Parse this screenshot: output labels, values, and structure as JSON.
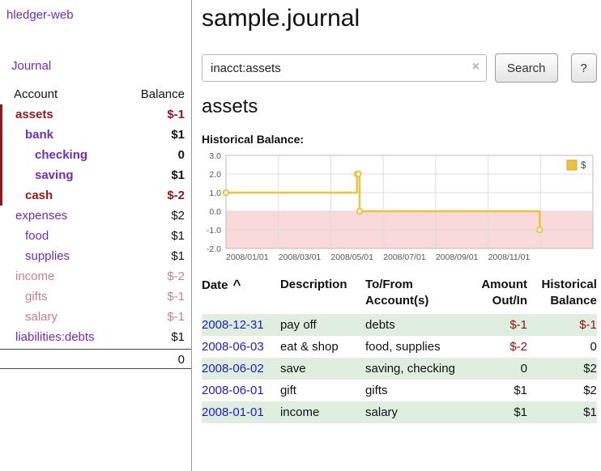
{
  "colors": {
    "link_purple": "#6f2cba",
    "negative_dark_red": "#8f1a1a",
    "negative_muted_pink": "#c2808f",
    "register_negative_red": "#a30d0d",
    "date_link_blue": "#1b1bd1",
    "row_green": "#dfeedf",
    "chart_line": "#edc240",
    "chart_negative_fill": "#f9d9d9"
  },
  "sidebar": {
    "app_title": "hledger-web",
    "journal_link": "Journal",
    "accounts": {
      "header_account": "Account",
      "header_balance": "Balance",
      "rows": [
        {
          "name": "assets",
          "balance": "$-1",
          "indent": 0,
          "bold": true,
          "negative": true,
          "in_query": true
        },
        {
          "name": "bank",
          "balance": "$1",
          "indent": 1,
          "bold": true,
          "negative": false,
          "in_query": true
        },
        {
          "name": "checking",
          "balance": "0",
          "indent": 2,
          "bold": true,
          "negative": false,
          "in_query": true
        },
        {
          "name": "saving",
          "balance": "$1",
          "indent": 2,
          "bold": true,
          "negative": false,
          "in_query": true
        },
        {
          "name": "cash",
          "balance": "$-2",
          "indent": 1,
          "bold": true,
          "negative": true,
          "in_query": true
        },
        {
          "name": "expenses",
          "balance": "$2",
          "indent": 0,
          "bold": false,
          "negative": false,
          "in_query": false
        },
        {
          "name": "food",
          "balance": "$1",
          "indent": 1,
          "bold": false,
          "negative": false,
          "in_query": false
        },
        {
          "name": "supplies",
          "balance": "$1",
          "indent": 1,
          "bold": false,
          "negative": false,
          "in_query": false
        },
        {
          "name": "income",
          "balance": "$-2",
          "indent": 0,
          "bold": false,
          "negative": true,
          "in_query": false
        },
        {
          "name": "gifts",
          "balance": "$-1",
          "indent": 1,
          "bold": false,
          "negative": true,
          "in_query": false
        },
        {
          "name": "salary",
          "balance": "$-1",
          "indent": 1,
          "bold": false,
          "negative": true,
          "in_query": false
        },
        {
          "name": "liabilities:debts",
          "balance": "$1",
          "indent": 0,
          "bold": false,
          "negative": false,
          "in_query": false
        }
      ],
      "total": "0"
    }
  },
  "main": {
    "title": "sample.journal",
    "search": {
      "value": "inacct:assets",
      "clear_icon": "×",
      "search_button": "Search",
      "help_button": "?"
    },
    "account_heading": "assets",
    "chart_heading": "Historical Balance:"
  },
  "chart_data": {
    "type": "line",
    "step": true,
    "title": "Historical Balance",
    "series": [
      {
        "name": "$",
        "points": [
          {
            "date": "2008-01-01",
            "month_x": 0,
            "y": 1.0
          },
          {
            "date": "2008-06-01",
            "month_x": 5.0,
            "y": 2.0
          },
          {
            "date": "2008-06-02",
            "month_x": 5.05,
            "y": 2.0
          },
          {
            "date": "2008-06-03",
            "month_x": 5.1,
            "y": 0.0
          },
          {
            "date": "2008-12-31",
            "month_x": 11.97,
            "y": -1.0
          }
        ]
      }
    ],
    "x_domain_months": [
      0,
      14
    ],
    "x_ticks": [
      {
        "x": 0,
        "label": "2008/01/01"
      },
      {
        "x": 2,
        "label": "2008/03/01"
      },
      {
        "x": 4,
        "label": "2008/05/01"
      },
      {
        "x": 6,
        "label": "2008/07/01"
      },
      {
        "x": 8,
        "label": "2008/09/01"
      },
      {
        "x": 10,
        "label": "2008/11/01"
      },
      {
        "x": 12,
        "label": ""
      }
    ],
    "y_ticks": [
      3.0,
      2.0,
      1.0,
      0.0,
      -1.0,
      -2.0
    ],
    "ylim": [
      -2.0,
      3.0
    ],
    "legend": {
      "label": "$",
      "position": "top-right"
    },
    "negative_region_shaded": true,
    "grid": true
  },
  "register": {
    "headers": [
      {
        "key": "date",
        "label": "Date",
        "align": "left",
        "sort_indicator": "^"
      },
      {
        "key": "description",
        "label": "Description",
        "align": "left"
      },
      {
        "key": "accounts",
        "label": "To/From Account(s)",
        "align": "left"
      },
      {
        "key": "amount",
        "label": "Amount Out/In",
        "align": "right"
      },
      {
        "key": "balance",
        "label": "Historical Balance",
        "align": "right"
      }
    ],
    "rows": [
      {
        "date": "2008-12-31",
        "description": "pay off",
        "accounts": "debts",
        "amount": "$-1",
        "amount_negative": true,
        "balance": "$-1",
        "balance_negative": true,
        "shaded": true
      },
      {
        "date": "2008-06-03",
        "description": "eat & shop",
        "accounts": "food, supplies",
        "amount": "$-2",
        "amount_negative": true,
        "balance": "0",
        "balance_negative": false,
        "shaded": false
      },
      {
        "date": "2008-06-02",
        "description": "save",
        "accounts": "saving, checking",
        "amount": "0",
        "amount_negative": false,
        "balance": "$2",
        "balance_negative": false,
        "shaded": true
      },
      {
        "date": "2008-06-01",
        "description": "gift",
        "accounts": "gifts",
        "amount": "$1",
        "amount_negative": false,
        "balance": "$2",
        "balance_negative": false,
        "shaded": false
      },
      {
        "date": "2008-01-01",
        "description": "income",
        "accounts": "salary",
        "amount": "$1",
        "amount_negative": false,
        "balance": "$1",
        "balance_negative": false,
        "shaded": true
      }
    ]
  }
}
